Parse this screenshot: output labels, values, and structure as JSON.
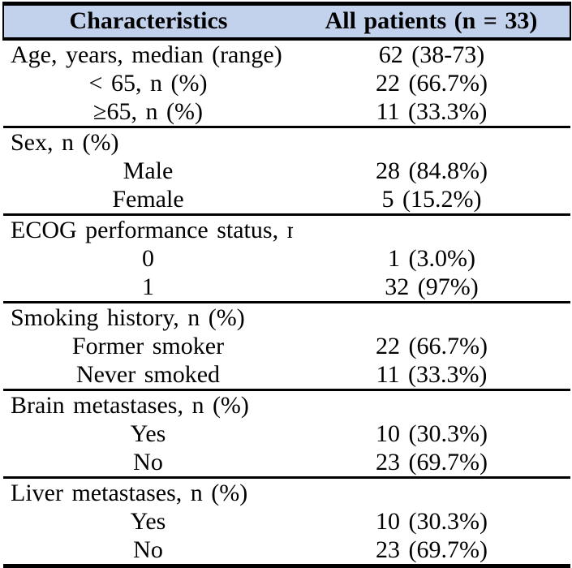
{
  "table": {
    "header": {
      "characteristics": "Characteristics",
      "all_patients": "All patients (n = 33)"
    },
    "colors": {
      "header_bg": "#c3d2ec",
      "rule": "#000000",
      "text": "#000000"
    },
    "rows": [
      {
        "label": "Age, years, median (range)",
        "value": "62 (38-73)"
      },
      {
        "label": "< 65, n (%)",
        "value": "22 (66.7%)"
      },
      {
        "label": "≥65, n (%)",
        "value": "11 (33.3%)"
      },
      {
        "label": "Sex, n (%)",
        "value": ""
      },
      {
        "label": "Male",
        "value": "28 (84.8%)"
      },
      {
        "label": "Female",
        "value": "5 (15.2%)"
      },
      {
        "label": "ECOG performance status, n (%)",
        "value": ""
      },
      {
        "label": "0",
        "value": "1 (3.0%)"
      },
      {
        "label": "1",
        "value": "32 (97%)"
      },
      {
        "label": "Smoking history, n (%)",
        "value": ""
      },
      {
        "label": "Former smoker",
        "value": "22 (66.7%)"
      },
      {
        "label": "Never smoked",
        "value": "11 (33.3%)"
      },
      {
        "label": "Brain metastases, n (%)",
        "value": ""
      },
      {
        "label": "Yes",
        "value": "10 (30.3%)"
      },
      {
        "label": "No",
        "value": "23 (69.7%)"
      },
      {
        "label": "Liver metastases, n (%)",
        "value": ""
      },
      {
        "label": "Yes",
        "value": "10 (30.3%)"
      },
      {
        "label": "No",
        "value": "23 (69.7%)"
      }
    ]
  }
}
